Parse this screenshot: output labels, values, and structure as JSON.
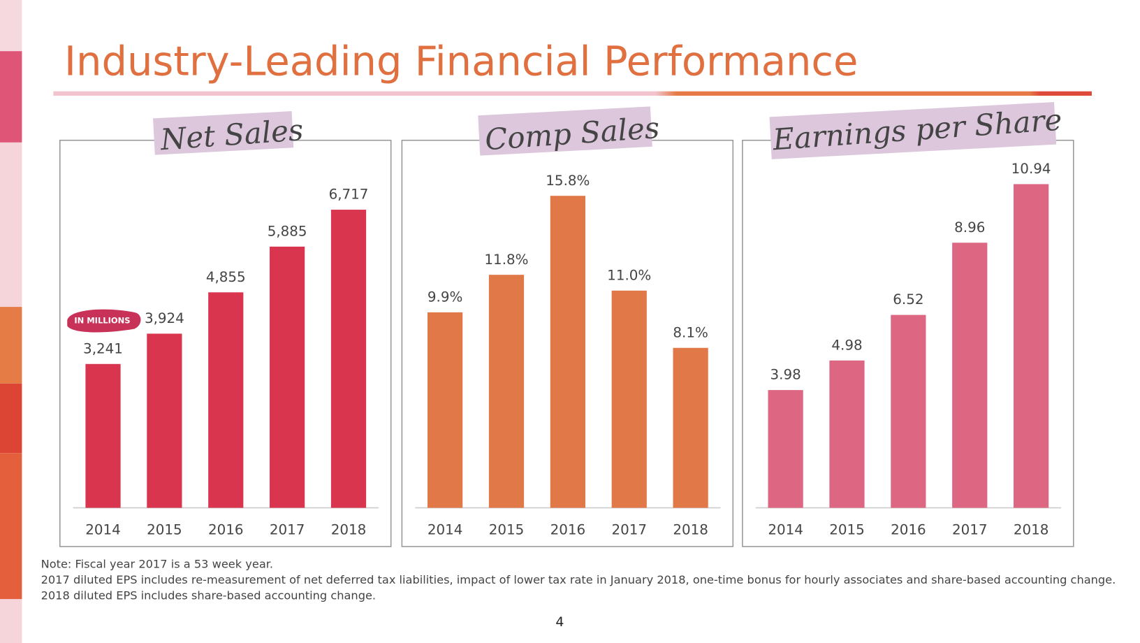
{
  "title": "Industry-Leading Financial Performance",
  "notes": [
    "Note: Fiscal year 2017 is a 53 week year.",
    "2017 diluted EPS includes re-measurement of net deferred tax liabilities, impact of lower tax rate in January 2018, one-time bonus for hourly associates and share-based accounting change.",
    "2018 diluted EPS includes share-based accounting change."
  ],
  "page_number": "4",
  "chart_data": [
    {
      "type": "bar",
      "title": "Net Sales",
      "annotation": "IN MILLIONS",
      "categories": [
        "2014",
        "2015",
        "2016",
        "2017",
        "2018"
      ],
      "values": [
        3241,
        3924,
        4855,
        5885,
        6717
      ],
      "value_labels": [
        "3,241",
        "3,924",
        "4,855",
        "5,885",
        "6,717"
      ],
      "color": "#d9354e"
    },
    {
      "type": "bar",
      "title": "Comp Sales",
      "categories": [
        "2014",
        "2015",
        "2016",
        "2017",
        "2018"
      ],
      "values": [
        9.9,
        11.8,
        15.8,
        11.0,
        8.1
      ],
      "value_labels": [
        "9.9%",
        "11.8%",
        "15.8%",
        "11.0%",
        "8.1%"
      ],
      "color": "#e07848"
    },
    {
      "type": "bar",
      "title": "Earnings per Share",
      "categories": [
        "2014",
        "2015",
        "2016",
        "2017",
        "2018"
      ],
      "values": [
        3.98,
        4.98,
        6.52,
        8.96,
        10.94
      ],
      "color": "#dd6682"
    }
  ]
}
